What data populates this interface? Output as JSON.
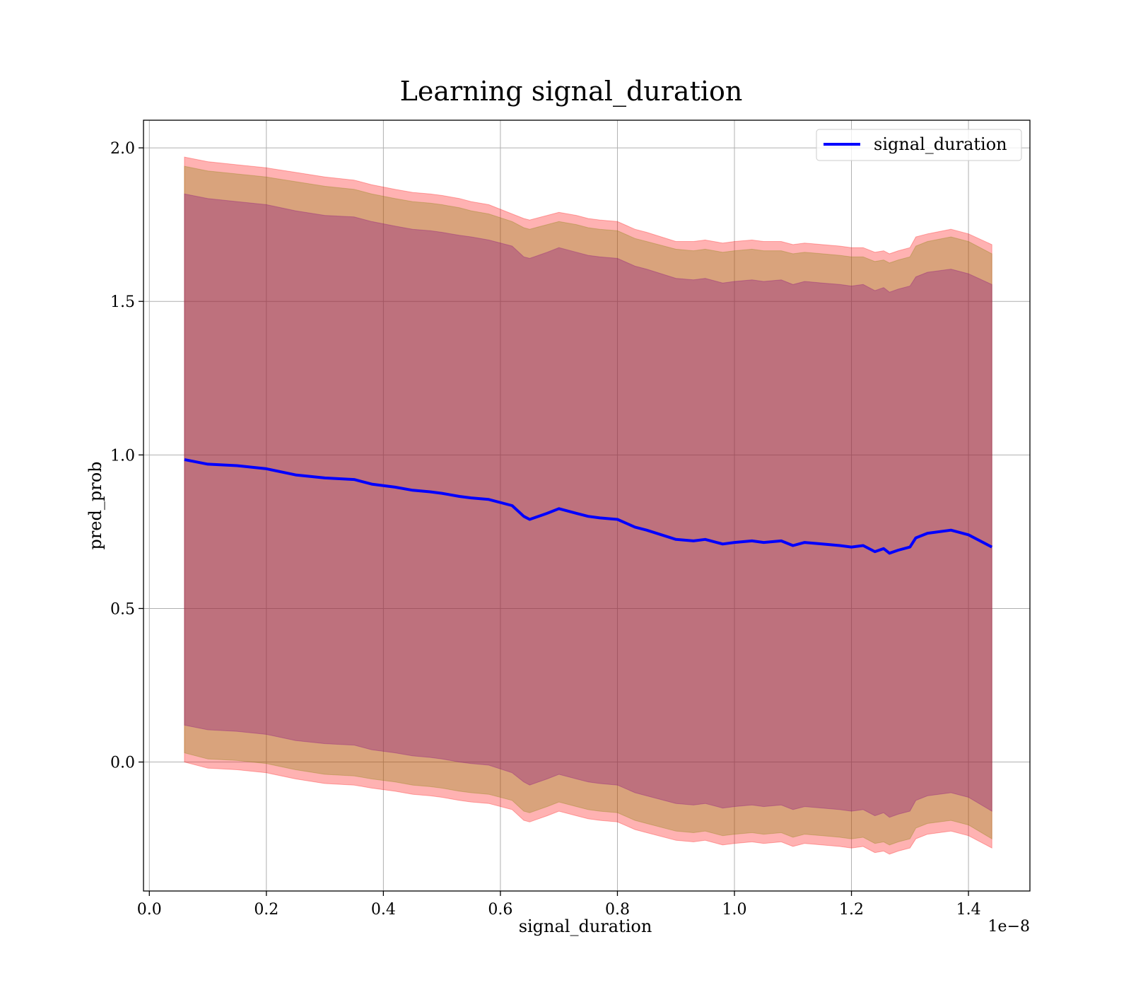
{
  "chart_data": {
    "type": "line",
    "title": "Learning signal_duration",
    "xlabel": "signal_duration",
    "ylabel": "pred_prob",
    "x_offset_label": "1e−8",
    "xlim": [
      -0.01,
      1.505
    ],
    "ylim": [
      -0.42,
      2.09
    ],
    "xticks": [
      0.0,
      0.2,
      0.4,
      0.6,
      0.8,
      1.0,
      1.2,
      1.4
    ],
    "xtick_labels": [
      "0.0",
      "0.2",
      "0.4",
      "0.6",
      "0.8",
      "1.0",
      "1.2",
      "1.4"
    ],
    "yticks": [
      0.0,
      0.5,
      1.0,
      1.5,
      2.0
    ],
    "ytick_labels": [
      "0.0",
      "0.5",
      "1.0",
      "1.5",
      "2.0"
    ],
    "grid": true,
    "legend_position": "top-right",
    "x": [
      0.06,
      0.1,
      0.15,
      0.2,
      0.25,
      0.3,
      0.35,
      0.38,
      0.42,
      0.45,
      0.48,
      0.5,
      0.53,
      0.55,
      0.58,
      0.62,
      0.64,
      0.65,
      0.68,
      0.7,
      0.73,
      0.75,
      0.77,
      0.8,
      0.83,
      0.85,
      0.9,
      0.93,
      0.95,
      0.98,
      1.0,
      1.03,
      1.05,
      1.08,
      1.1,
      1.12,
      1.15,
      1.18,
      1.2,
      1.22,
      1.24,
      1.255,
      1.265,
      1.28,
      1.3,
      1.31,
      1.33,
      1.37,
      1.4,
      1.44
    ],
    "series": [
      {
        "name": "signal_duration",
        "color": "#0000ff",
        "values": [
          0.985,
          0.97,
          0.965,
          0.955,
          0.935,
          0.925,
          0.92,
          0.905,
          0.895,
          0.885,
          0.88,
          0.875,
          0.865,
          0.86,
          0.855,
          0.835,
          0.8,
          0.79,
          0.81,
          0.825,
          0.81,
          0.8,
          0.795,
          0.79,
          0.765,
          0.755,
          0.725,
          0.72,
          0.725,
          0.71,
          0.715,
          0.72,
          0.715,
          0.72,
          0.705,
          0.715,
          0.71,
          0.705,
          0.7,
          0.705,
          0.685,
          0.695,
          0.68,
          0.69,
          0.7,
          0.73,
          0.745,
          0.755,
          0.74,
          0.7
        ]
      }
    ],
    "bands": [
      {
        "color": "#ff0000",
        "opacity": 0.3,
        "upper": [
          1.97,
          1.955,
          1.945,
          1.935,
          1.92,
          1.905,
          1.895,
          1.88,
          1.865,
          1.855,
          1.85,
          1.845,
          1.835,
          1.825,
          1.815,
          1.785,
          1.77,
          1.765,
          1.78,
          1.79,
          1.78,
          1.77,
          1.765,
          1.76,
          1.735,
          1.725,
          1.695,
          1.695,
          1.7,
          1.69,
          1.695,
          1.7,
          1.695,
          1.695,
          1.685,
          1.69,
          1.685,
          1.68,
          1.675,
          1.675,
          1.66,
          1.665,
          1.655,
          1.665,
          1.675,
          1.71,
          1.72,
          1.735,
          1.72,
          1.685
        ],
        "lower": [
          0.0,
          -0.02,
          -0.025,
          -0.035,
          -0.055,
          -0.07,
          -0.075,
          -0.085,
          -0.095,
          -0.105,
          -0.11,
          -0.115,
          -0.125,
          -0.13,
          -0.135,
          -0.155,
          -0.19,
          -0.195,
          -0.175,
          -0.16,
          -0.175,
          -0.185,
          -0.19,
          -0.195,
          -0.22,
          -0.23,
          -0.255,
          -0.26,
          -0.255,
          -0.27,
          -0.265,
          -0.26,
          -0.265,
          -0.26,
          -0.275,
          -0.265,
          -0.27,
          -0.275,
          -0.28,
          -0.275,
          -0.295,
          -0.29,
          -0.3,
          -0.29,
          -0.28,
          -0.25,
          -0.235,
          -0.225,
          -0.24,
          -0.28
        ]
      },
      {
        "color": "#808000",
        "opacity": 0.3,
        "upper": [
          1.94,
          1.925,
          1.915,
          1.905,
          1.89,
          1.875,
          1.865,
          1.85,
          1.835,
          1.825,
          1.82,
          1.815,
          1.805,
          1.795,
          1.785,
          1.76,
          1.74,
          1.735,
          1.75,
          1.76,
          1.75,
          1.74,
          1.735,
          1.73,
          1.705,
          1.695,
          1.67,
          1.665,
          1.67,
          1.66,
          1.665,
          1.67,
          1.665,
          1.665,
          1.655,
          1.66,
          1.655,
          1.65,
          1.645,
          1.645,
          1.63,
          1.635,
          1.625,
          1.635,
          1.645,
          1.68,
          1.695,
          1.71,
          1.695,
          1.655
        ],
        "lower": [
          0.03,
          0.01,
          0.005,
          -0.005,
          -0.025,
          -0.04,
          -0.045,
          -0.055,
          -0.065,
          -0.075,
          -0.08,
          -0.085,
          -0.095,
          -0.1,
          -0.105,
          -0.125,
          -0.16,
          -0.165,
          -0.145,
          -0.13,
          -0.145,
          -0.155,
          -0.16,
          -0.165,
          -0.19,
          -0.2,
          -0.225,
          -0.23,
          -0.225,
          -0.24,
          -0.235,
          -0.23,
          -0.235,
          -0.23,
          -0.245,
          -0.235,
          -0.24,
          -0.245,
          -0.25,
          -0.245,
          -0.265,
          -0.26,
          -0.27,
          -0.26,
          -0.25,
          -0.215,
          -0.2,
          -0.19,
          -0.205,
          -0.25
        ]
      },
      {
        "color": "#800080",
        "opacity": 0.3,
        "upper": [
          1.85,
          1.835,
          1.825,
          1.815,
          1.795,
          1.78,
          1.775,
          1.76,
          1.745,
          1.735,
          1.73,
          1.725,
          1.715,
          1.71,
          1.7,
          1.68,
          1.645,
          1.64,
          1.66,
          1.675,
          1.66,
          1.65,
          1.645,
          1.64,
          1.615,
          1.605,
          1.575,
          1.57,
          1.575,
          1.56,
          1.565,
          1.57,
          1.565,
          1.57,
          1.555,
          1.565,
          1.56,
          1.555,
          1.55,
          1.555,
          1.535,
          1.545,
          1.53,
          1.54,
          1.55,
          1.58,
          1.595,
          1.605,
          1.59,
          1.555
        ],
        "lower": [
          0.12,
          0.105,
          0.1,
          0.09,
          0.07,
          0.06,
          0.055,
          0.04,
          0.03,
          0.02,
          0.015,
          0.01,
          0.0,
          -0.005,
          -0.01,
          -0.035,
          -0.065,
          -0.075,
          -0.055,
          -0.04,
          -0.055,
          -0.065,
          -0.07,
          -0.075,
          -0.1,
          -0.11,
          -0.135,
          -0.14,
          -0.135,
          -0.15,
          -0.145,
          -0.14,
          -0.145,
          -0.14,
          -0.155,
          -0.145,
          -0.15,
          -0.155,
          -0.16,
          -0.155,
          -0.175,
          -0.165,
          -0.18,
          -0.17,
          -0.16,
          -0.125,
          -0.11,
          -0.1,
          -0.115,
          -0.16
        ]
      }
    ]
  }
}
